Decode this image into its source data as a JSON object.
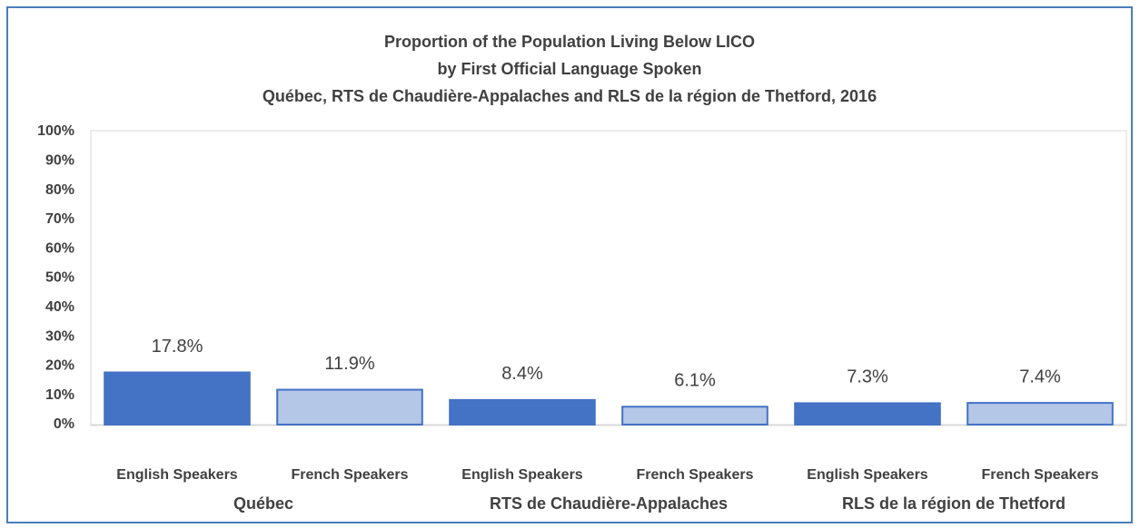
{
  "chart_data": {
    "type": "bar",
    "title": [
      "Proportion of the Population Living Below LICO",
      "by First Official Language Spoken",
      "Québec, RTS de Chaudière-Appalaches and RLS de la région de Thetford, 2016"
    ],
    "categories": [
      "English Speakers",
      "French Speakers",
      "English Speakers",
      "French Speakers",
      "English Speakers",
      "French Speakers"
    ],
    "groups": [
      "Québec",
      "RTS de Chaudière-Appalaches",
      "RLS de la région de Thetford"
    ],
    "values": [
      17.8,
      11.9,
      8.4,
      6.1,
      7.3,
      7.4
    ],
    "value_labels": [
      "17.8%",
      "11.9%",
      "8.4%",
      "6.1%",
      "7.3%",
      "7.4%"
    ],
    "colors": [
      "#4472c4",
      "#b4c7e7"
    ],
    "ylim": [
      0,
      100
    ],
    "yticks": [
      {
        "value": 0,
        "label": "0%"
      },
      {
        "value": 10,
        "label": "10%"
      },
      {
        "value": 20,
        "label": "20%"
      },
      {
        "value": 30,
        "label": "30%"
      },
      {
        "value": 40,
        "label": "40%"
      },
      {
        "value": 50,
        "label": "50%"
      },
      {
        "value": 60,
        "label": "60%"
      },
      {
        "value": 70,
        "label": "70%"
      },
      {
        "value": 80,
        "label": "80%"
      },
      {
        "value": 90,
        "label": "90%"
      },
      {
        "value": 100,
        "label": "100%"
      }
    ],
    "grid": false
  }
}
